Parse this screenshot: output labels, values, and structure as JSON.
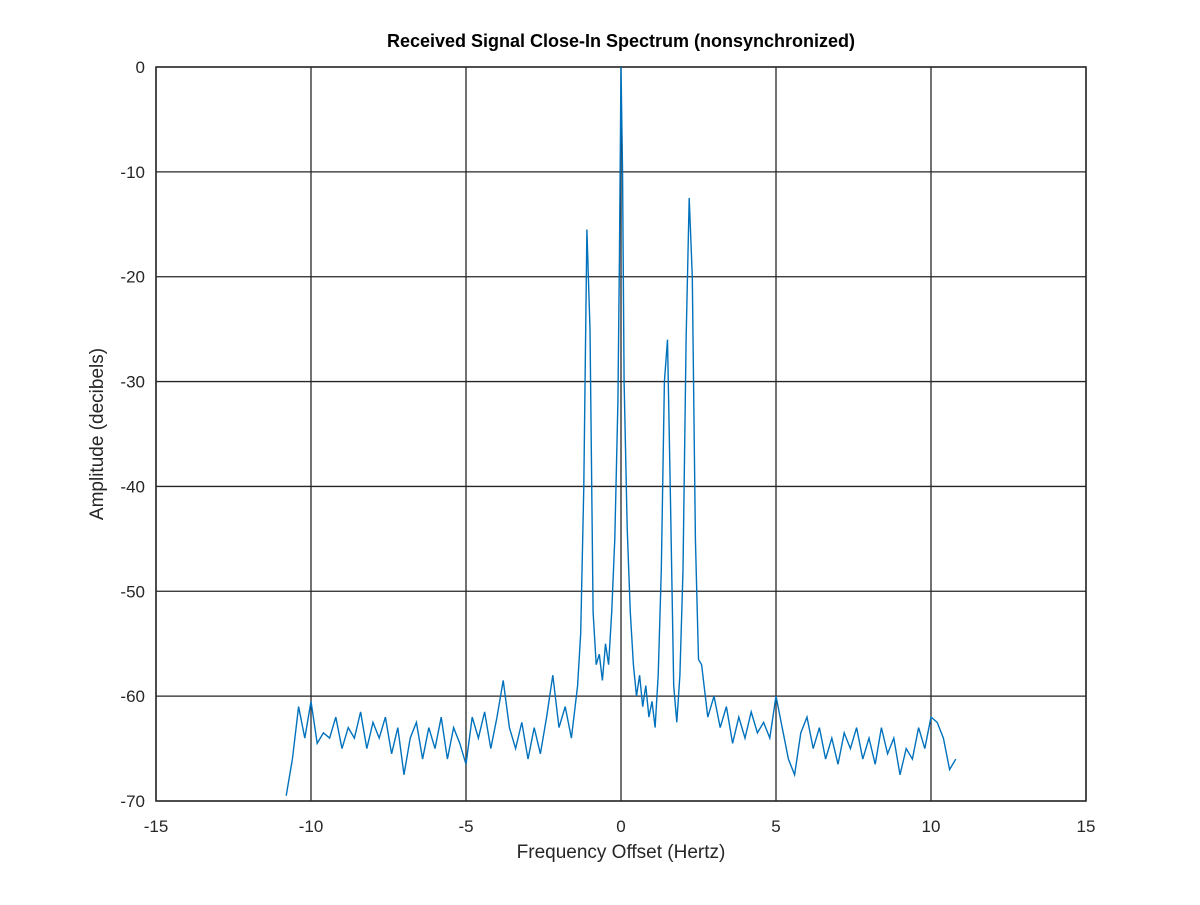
{
  "chart_data": {
    "type": "line",
    "title": "Received Signal Close-In Spectrum (nonsynchronized)",
    "x_label": "Frequency Offset (Hertz)",
    "y_label": "Amplitude (decibels)",
    "xlim": [
      -15,
      15
    ],
    "ylim": [
      -70,
      0
    ],
    "xticks": [
      -15,
      -10,
      -5,
      0,
      5,
      10,
      15
    ],
    "yticks": [
      -70,
      -60,
      -50,
      -40,
      -30,
      -20,
      -10,
      0
    ],
    "grid": true,
    "x": [
      -10.8,
      -10.6,
      -10.4,
      -10.2,
      -10.0,
      -9.8,
      -9.6,
      -9.4,
      -9.2,
      -9.0,
      -8.8,
      -8.6,
      -8.4,
      -8.2,
      -8.0,
      -7.8,
      -7.6,
      -7.4,
      -7.2,
      -7.0,
      -6.8,
      -6.6,
      -6.4,
      -6.2,
      -6.0,
      -5.8,
      -5.6,
      -5.4,
      -5.2,
      -5.0,
      -4.8,
      -4.6,
      -4.4,
      -4.2,
      -4.0,
      -3.8,
      -3.6,
      -3.4,
      -3.2,
      -3.0,
      -2.8,
      -2.6,
      -2.4,
      -2.2,
      -2.0,
      -1.8,
      -1.6,
      -1.4,
      -1.3,
      -1.2,
      -1.1,
      -1.0,
      -0.9,
      -0.8,
      -0.7,
      -0.6,
      -0.5,
      -0.4,
      -0.3,
      -0.2,
      -0.1,
      -0.05,
      0,
      0.05,
      0.1,
      0.2,
      0.3,
      0.4,
      0.5,
      0.6,
      0.7,
      0.8,
      0.9,
      1.0,
      1.1,
      1.2,
      1.3,
      1.4,
      1.5,
      1.6,
      1.7,
      1.8,
      1.9,
      2.0,
      2.1,
      2.2,
      2.3,
      2.4,
      2.5,
      2.6,
      2.8,
      3.0,
      3.2,
      3.4,
      3.6,
      3.8,
      4.0,
      4.2,
      4.4,
      4.6,
      4.8,
      5.0,
      5.2,
      5.4,
      5.6,
      5.8,
      6.0,
      6.2,
      6.4,
      6.6,
      6.8,
      7.0,
      7.2,
      7.4,
      7.6,
      7.8,
      8.0,
      8.2,
      8.4,
      8.6,
      8.8,
      9.0,
      9.2,
      9.4,
      9.6,
      9.8,
      10.0,
      10.2,
      10.4,
      10.6,
      10.8
    ],
    "series": [
      {
        "color": "#0072bd",
        "values": [
          -69.5,
          -66,
          -61,
          -64,
          -60.5,
          -64.5,
          -63.5,
          -64,
          -62,
          -65,
          -63,
          -64,
          -61.5,
          -65,
          -62.5,
          -64,
          -62,
          -65.5,
          -63,
          -67.5,
          -64,
          -62.5,
          -66,
          -63,
          -65,
          -62,
          -66,
          -63,
          -64.5,
          -66.5,
          -62,
          -64,
          -61.5,
          -65,
          -62,
          -58.5,
          -63,
          -65,
          -62.5,
          -66,
          -63,
          -65.5,
          -62,
          -58,
          -63,
          -61,
          -64,
          -59,
          -54,
          -40,
          -15.5,
          -25,
          -52,
          -57,
          -56,
          -58.5,
          -55,
          -57,
          -52,
          -45,
          -32,
          -18,
          0,
          -10,
          -30,
          -44,
          -52,
          -57,
          -60,
          -58,
          -61,
          -59,
          -62,
          -60.5,
          -63,
          -58,
          -48,
          -30,
          -26,
          -42,
          -59,
          -62.5,
          -58,
          -48,
          -26,
          -12.5,
          -20,
          -45,
          -56.5,
          -57,
          -62,
          -60,
          -63,
          -61,
          -64.5,
          -62,
          -64,
          -61.5,
          -63.5,
          -62.5,
          -64,
          -60,
          -63,
          -66,
          -67.5,
          -63.5,
          -62,
          -65,
          -63,
          -66,
          -64,
          -66.5,
          -63.5,
          -65,
          -63,
          -66,
          -64,
          -66.5,
          -63,
          -65.5,
          -64,
          -67.5,
          -65,
          -66,
          -63,
          -65,
          -62,
          -62.5,
          -64,
          -67,
          -66
        ]
      }
    ]
  }
}
